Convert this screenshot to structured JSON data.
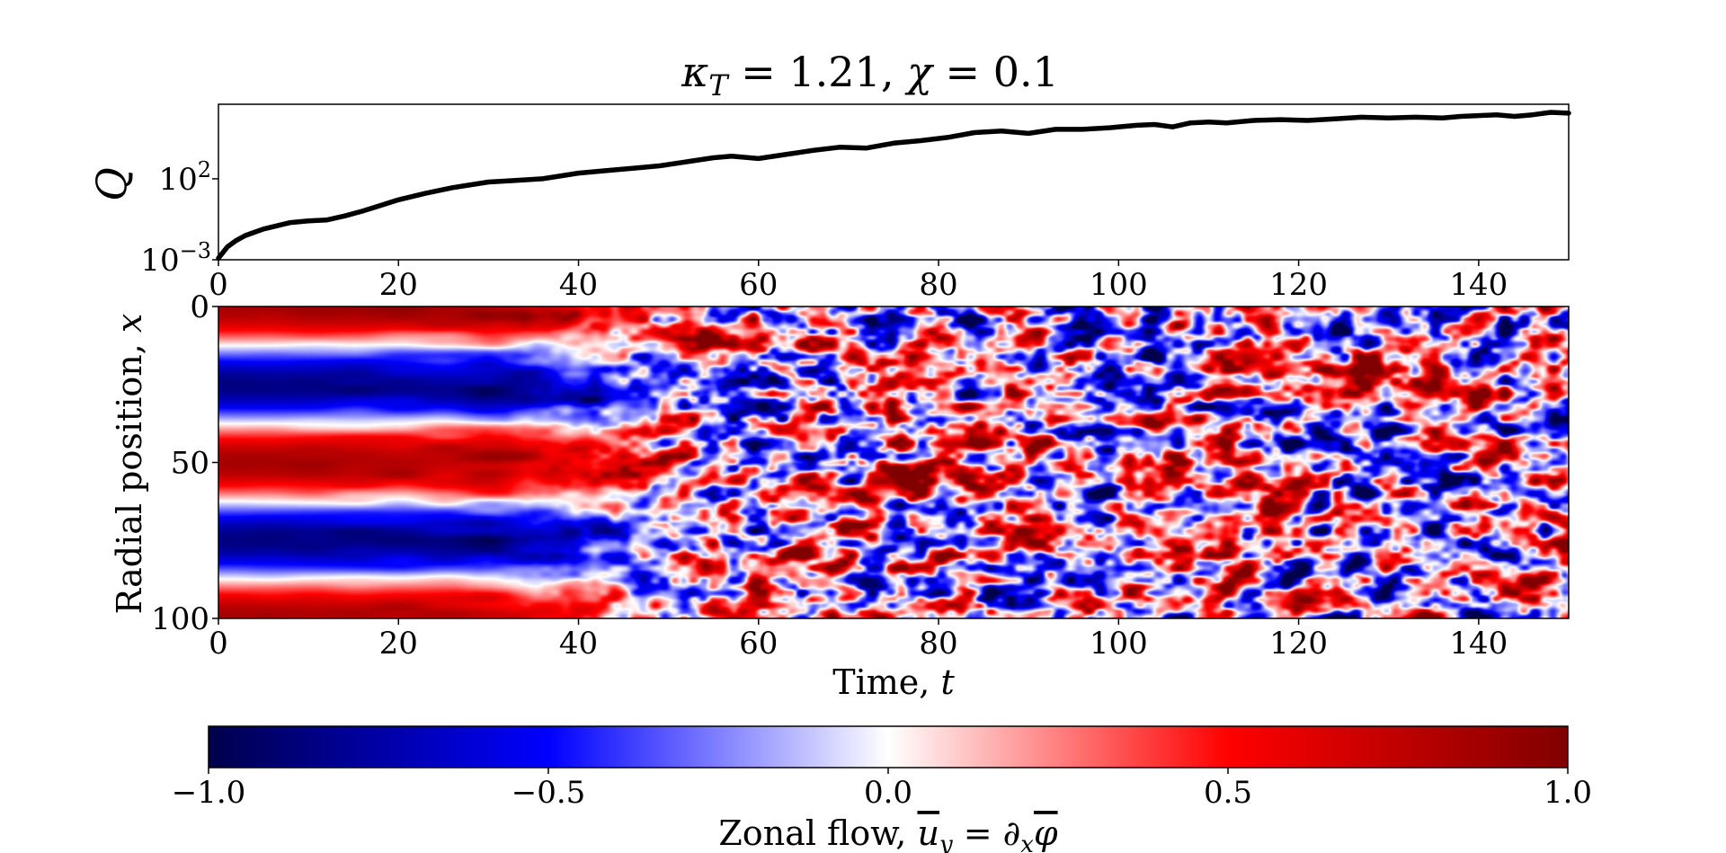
{
  "title": "κ_T = 1.21, χ = 0.1",
  "title_parts": {
    "kappa": "κ",
    "kappa_sub": "T",
    "eq1": " = 1.21, ",
    "chi": "χ",
    "eq2": " = 0.1"
  },
  "chart_data": [
    {
      "type": "line",
      "ylabel": "Q",
      "yscale": "log",
      "xlim": [
        0,
        150
      ],
      "ylim_exponents": [
        -3,
        5
      ],
      "xticks": [
        "0",
        "20",
        "40",
        "60",
        "80",
        "100",
        "120",
        "140"
      ],
      "yticks": [
        {
          "base": "10",
          "exp": "2",
          "value": 100
        },
        {
          "base": "10",
          "exp": "−3",
          "value": 0.001
        }
      ],
      "series": [
        {
          "color": "#000000",
          "x": [
            0,
            1,
            2,
            3,
            5,
            8,
            10,
            12,
            14,
            16,
            18,
            20,
            23,
            26,
            30,
            33,
            36,
            40,
            43,
            46,
            49,
            52,
            55,
            57,
            60,
            63,
            66,
            69,
            72,
            75,
            78,
            81,
            84,
            87,
            90,
            93,
            96,
            99,
            102,
            104,
            106,
            108,
            110,
            112,
            115,
            118,
            121,
            124,
            127,
            130,
            133,
            136,
            138,
            140,
            142,
            144,
            146,
            148,
            150
          ],
          "log10y": [
            -2.9,
            -2.2,
            -1.8,
            -1.5,
            -1.1,
            -0.7,
            -0.6,
            -0.55,
            -0.3,
            0.0,
            0.35,
            0.7,
            1.1,
            1.45,
            1.8,
            1.9,
            2.0,
            2.35,
            2.5,
            2.65,
            2.8,
            3.05,
            3.3,
            3.4,
            3.25,
            3.5,
            3.75,
            3.95,
            3.9,
            4.2,
            4.35,
            4.55,
            4.85,
            4.95,
            4.8,
            5.05,
            5.05,
            5.15,
            5.3,
            5.35,
            5.2,
            5.45,
            5.5,
            5.45,
            5.6,
            5.65,
            5.6,
            5.7,
            5.8,
            5.75,
            5.8,
            5.75,
            5.85,
            5.9,
            5.95,
            5.85,
            5.95,
            6.1,
            6.05
          ]
        }
      ]
    },
    {
      "type": "heatmap",
      "xlabel": "Time, t",
      "xlabel_parts": {
        "text": "Time, ",
        "var": "t"
      },
      "ylabel": "Radial position, x",
      "ylabel_parts": {
        "text": "Radial position, ",
        "var": "x"
      },
      "xlim": [
        0,
        150
      ],
      "ylim": [
        0,
        100
      ],
      "y_inverted": true,
      "xticks": [
        "0",
        "20",
        "40",
        "60",
        "80",
        "100",
        "120",
        "140"
      ],
      "yticks": [
        "0",
        "50",
        "100"
      ],
      "colormap": "seismic",
      "vmin": -1.0,
      "vmax": 1.0,
      "initial_profile": "cos(2π·2x/100): red at x≈0, 50, 100; blue at x≈25, 75",
      "transition_time": 45,
      "late_state": "turbulent small-scale red/blue patches"
    },
    {
      "type": "colorbar",
      "label": "Zonal flow, ū_y = ∂_x φ̄",
      "label_parts": {
        "text": "Zonal flow, ",
        "u": "u",
        "u_sub": "y",
        "eq": " = ∂",
        "x_sub": "x",
        "phi": "φ"
      },
      "ticks": [
        "−1.0",
        "−0.5",
        "0.0",
        "0.5",
        "1.0"
      ],
      "range": [
        -1.0,
        1.0
      ],
      "colors": [
        "#00004c",
        "#0000ff",
        "#ffffff",
        "#ff0000",
        "#800000"
      ]
    }
  ]
}
